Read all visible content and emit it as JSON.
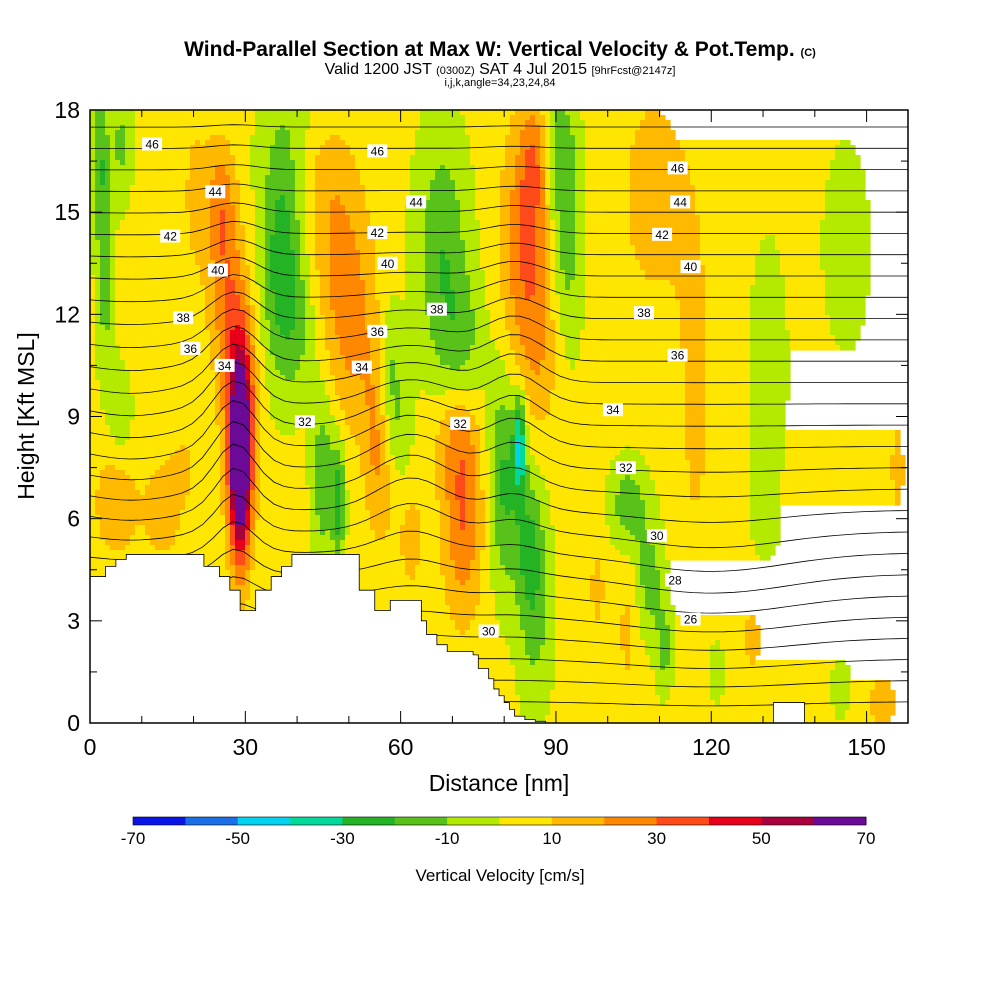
{
  "header": {
    "title": "Wind-Parallel Section at Max W: Vertical Velocity & Pot.Temp.",
    "copyright": "(C)",
    "valid_prefix": "Valid 1200 JST",
    "valid_utc": "(0300Z)",
    "valid_date": "SAT 4 Jul 2015",
    "forecast": "[9hrFcst@2147z]",
    "params": "i,j,k,angle=34,23,24,84"
  },
  "colors": {
    "levels": [
      "#0a14e6",
      "#1a6ee8",
      "#00d2f0",
      "#00d99a",
      "#24b324",
      "#58c21a",
      "#b4ea00",
      "#ffe600",
      "#ffba00",
      "#ff8800",
      "#ff4a1a",
      "#e8001a",
      "#a8003c",
      "#6a0a96"
    ],
    "terrain": "#ffffff",
    "contour": "#000000"
  },
  "chart_data": {
    "type": "heatmap",
    "xlabel": "Distance [nm]",
    "ylabel": "Height [Kft MSL]",
    "xlim": [
      0,
      158
    ],
    "ylim": [
      0,
      18
    ],
    "x_ticks": [
      0,
      30,
      60,
      90,
      120,
      150
    ],
    "y_ticks": [
      0,
      3,
      6,
      9,
      12,
      15,
      18
    ],
    "colorbar": {
      "label": "Vertical Velocity [cm/s]",
      "bounds": [
        -70,
        -60,
        -50,
        -40,
        -30,
        -20,
        -10,
        0,
        10,
        20,
        30,
        40,
        50,
        60,
        70
      ],
      "tick_labels": [
        "-70",
        "-50",
        "-30",
        "-10",
        "10",
        "30",
        "50",
        "70"
      ]
    },
    "terrain_profile": {
      "x": [
        0,
        3,
        3,
        5,
        5,
        7,
        7,
        22,
        22,
        25,
        25,
        27,
        27,
        29,
        29,
        32,
        32,
        35,
        35,
        37,
        37,
        39,
        39,
        52,
        52,
        55,
        55,
        58,
        58,
        64,
        64,
        65,
        65,
        67,
        67,
        69,
        69,
        74,
        74,
        75,
        75,
        77,
        77,
        78,
        78,
        79,
        79,
        80,
        80,
        81,
        81,
        82,
        82,
        84,
        84,
        86,
        86,
        88,
        88,
        132,
        132,
        138,
        138,
        158
      ],
      "y": [
        4.3,
        4.3,
        4.6,
        4.6,
        4.8,
        4.8,
        4.95,
        4.95,
        4.6,
        4.6,
        4.3,
        4.3,
        3.9,
        3.9,
        3.3,
        3.3,
        3.9,
        3.9,
        4.3,
        4.3,
        4.6,
        4.6,
        4.95,
        4.95,
        3.9,
        3.9,
        3.3,
        3.3,
        3.6,
        3.6,
        3.0,
        3.0,
        2.6,
        2.6,
        2.3,
        2.3,
        2.1,
        2.1,
        2.0,
        2.0,
        1.6,
        1.6,
        1.3,
        1.3,
        1.0,
        1.0,
        0.8,
        0.8,
        0.6,
        0.6,
        0.4,
        0.4,
        0.2,
        0.2,
        0.1,
        0.1,
        0.05,
        0.05,
        0.0,
        0.0,
        0.6,
        0.6,
        0.0,
        0.0
      ]
    },
    "vertical_velocity_features": [
      {
        "x": 29,
        "y": 7.6,
        "sx": 1.4,
        "sy": 2.0,
        "w": 75
      },
      {
        "x": 29,
        "y": 9.3,
        "sx": 2.2,
        "sy": 2.3,
        "w": 35
      },
      {
        "x": 26,
        "y": 13.0,
        "sx": 2.2,
        "sy": 2.0,
        "w": 22
      },
      {
        "x": 25,
        "y": 15.5,
        "sx": 2.0,
        "sy": 1.2,
        "w": 15
      },
      {
        "x": 5,
        "y": 6.5,
        "sx": 3.0,
        "sy": 1.2,
        "w": 15
      },
      {
        "x": 14,
        "y": 6.2,
        "sx": 2.5,
        "sy": 1.0,
        "w": 14
      },
      {
        "x": 18,
        "y": 7.5,
        "sx": 2.0,
        "sy": 0.9,
        "w": 8
      },
      {
        "x": 20,
        "y": 15.5,
        "sx": 2.2,
        "sy": 2.5,
        "w": 8
      },
      {
        "x": 48,
        "y": 13.5,
        "sx": 4.0,
        "sy": 2.5,
        "w": 20
      },
      {
        "x": 44,
        "y": 16.5,
        "sx": 4.0,
        "sy": 1.3,
        "w": 16
      },
      {
        "x": 52,
        "y": 11.0,
        "sx": 3.0,
        "sy": 2.0,
        "w": 12
      },
      {
        "x": 55,
        "y": 9.0,
        "sx": 1.5,
        "sy": 1.5,
        "w": 10
      },
      {
        "x": 56,
        "y": 7.0,
        "sx": 2.0,
        "sy": 1.5,
        "w": 12
      },
      {
        "x": 62,
        "y": 5.5,
        "sx": 2.0,
        "sy": 1.5,
        "w": 10
      },
      {
        "x": 72,
        "y": 6.3,
        "sx": 2.8,
        "sy": 2.2,
        "w": 28
      },
      {
        "x": 70,
        "y": 8.5,
        "sx": 3.0,
        "sy": 1.0,
        "w": 10
      },
      {
        "x": 84,
        "y": 14.0,
        "sx": 3.2,
        "sy": 2.5,
        "w": 26
      },
      {
        "x": 86,
        "y": 16.5,
        "sx": 2.0,
        "sy": 1.3,
        "w": 18
      },
      {
        "x": 87,
        "y": 11.0,
        "sx": 3.0,
        "sy": 1.8,
        "w": 12
      },
      {
        "x": 109,
        "y": 15.5,
        "sx": 6.0,
        "sy": 3.0,
        "w": 10
      },
      {
        "x": 117,
        "y": 9.3,
        "sx": 2.5,
        "sy": 4.0,
        "w": 9
      },
      {
        "x": 98,
        "y": 4.0,
        "sx": 1.5,
        "sy": 1.3,
        "w": 9
      },
      {
        "x": 104,
        "y": 2.8,
        "sx": 1.6,
        "sy": 1.5,
        "w": 10
      },
      {
        "x": 128,
        "y": 2.5,
        "sx": 2.5,
        "sy": 1.5,
        "w": 8
      },
      {
        "x": 145,
        "y": 6.5,
        "sx": 3.5,
        "sy": 0.7,
        "w": 7
      },
      {
        "x": 153,
        "y": 0.6,
        "sx": 2.0,
        "sy": 0.6,
        "w": 14
      },
      {
        "x": 156,
        "y": 7.5,
        "sx": 2.0,
        "sy": 2.0,
        "w": 8
      },
      {
        "x": 37,
        "y": 13.5,
        "sx": 2.8,
        "sy": 2.3,
        "w": -28
      },
      {
        "x": 42,
        "y": 17.0,
        "sx": 5.5,
        "sy": 1.6,
        "w": -15
      },
      {
        "x": 41,
        "y": 11.5,
        "sx": 3.0,
        "sy": 1.5,
        "w": -12
      },
      {
        "x": 45,
        "y": 7.3,
        "sx": 1.5,
        "sy": 1.7,
        "w": -22
      },
      {
        "x": 48,
        "y": 6.5,
        "sx": 0.9,
        "sy": 1.2,
        "w": -30
      },
      {
        "x": 2,
        "y": 16.5,
        "sx": 1.1,
        "sy": 1.8,
        "w": -22
      },
      {
        "x": 3,
        "y": 12.5,
        "sx": 1.2,
        "sy": 2.0,
        "w": -15
      },
      {
        "x": 6,
        "y": 9.0,
        "sx": 1.5,
        "sy": 1.0,
        "w": -12
      },
      {
        "x": 6,
        "y": 17.0,
        "sx": 1.5,
        "sy": 1.2,
        "w": -15
      },
      {
        "x": 58,
        "y": 10.5,
        "sx": 1.6,
        "sy": 1.3,
        "w": -14
      },
      {
        "x": 60,
        "y": 8.5,
        "sx": 1.8,
        "sy": 1.2,
        "w": -12
      },
      {
        "x": 68,
        "y": 13.8,
        "sx": 3.5,
        "sy": 2.5,
        "w": -22
      },
      {
        "x": 72,
        "y": 11.0,
        "sx": 3.0,
        "sy": 1.5,
        "w": -15
      },
      {
        "x": 80,
        "y": 7.2,
        "sx": 2.2,
        "sy": 2.2,
        "w": -25
      },
      {
        "x": 83,
        "y": 8.2,
        "sx": 0.8,
        "sy": 1.0,
        "w": -40
      },
      {
        "x": 85,
        "y": 5.2,
        "sx": 2.0,
        "sy": 1.5,
        "w": -22
      },
      {
        "x": 86,
        "y": 2.8,
        "sx": 2.3,
        "sy": 1.8,
        "w": -14
      },
      {
        "x": 92,
        "y": 14.5,
        "sx": 2.2,
        "sy": 2.5,
        "w": -20
      },
      {
        "x": 90,
        "y": 17.0,
        "sx": 2.0,
        "sy": 1.2,
        "w": -14
      },
      {
        "x": 104,
        "y": 6.4,
        "sx": 2.5,
        "sy": 0.9,
        "w": -20
      },
      {
        "x": 108,
        "y": 4.2,
        "sx": 2.0,
        "sy": 1.2,
        "w": -18
      },
      {
        "x": 111,
        "y": 2.2,
        "sx": 1.2,
        "sy": 0.9,
        "w": -16
      },
      {
        "x": 131,
        "y": 10.5,
        "sx": 2.5,
        "sy": 2.5,
        "w": -10
      },
      {
        "x": 146,
        "y": 14.0,
        "sx": 3.0,
        "sy": 2.0,
        "w": -10
      },
      {
        "x": 130,
        "y": 6.0,
        "sx": 2.0,
        "sy": 1.0,
        "w": -8
      },
      {
        "x": 121,
        "y": 1.5,
        "sx": 1.5,
        "sy": 0.8,
        "w": -7
      },
      {
        "x": 145,
        "y": 1.0,
        "sx": 1.5,
        "sy": 0.7,
        "w": -7
      }
    ],
    "theta_labels": [
      {
        "text": "46",
        "x": 12.0,
        "y": 17.0
      },
      {
        "text": "44",
        "x": 24.2,
        "y": 15.6
      },
      {
        "text": "42",
        "x": 15.5,
        "y": 14.3
      },
      {
        "text": "40",
        "x": 24.7,
        "y": 13.3
      },
      {
        "text": "38",
        "x": 18.0,
        "y": 11.9
      },
      {
        "text": "36",
        "x": 19.4,
        "y": 11.0
      },
      {
        "text": "34",
        "x": 26.0,
        "y": 10.5
      },
      {
        "text": "32",
        "x": 41.5,
        "y": 8.85
      },
      {
        "text": "46",
        "x": 55.5,
        "y": 16.8
      },
      {
        "text": "44",
        "x": 63.0,
        "y": 15.3
      },
      {
        "text": "42",
        "x": 55.5,
        "y": 14.4
      },
      {
        "text": "40",
        "x": 57.5,
        "y": 13.5
      },
      {
        "text": "38",
        "x": 67.0,
        "y": 12.15
      },
      {
        "text": "36",
        "x": 55.5,
        "y": 11.5
      },
      {
        "text": "34",
        "x": 52.5,
        "y": 10.45
      },
      {
        "text": "32",
        "x": 71.5,
        "y": 8.8
      },
      {
        "text": "46",
        "x": 113.5,
        "y": 16.3
      },
      {
        "text": "44",
        "x": 114.0,
        "y": 15.3
      },
      {
        "text": "42",
        "x": 110.5,
        "y": 14.35
      },
      {
        "text": "40",
        "x": 116.0,
        "y": 13.4
      },
      {
        "text": "38",
        "x": 107.0,
        "y": 12.05
      },
      {
        "text": "36",
        "x": 113.5,
        "y": 10.8
      },
      {
        "text": "34",
        "x": 101.0,
        "y": 9.2
      },
      {
        "text": "32",
        "x": 103.5,
        "y": 7.5
      },
      {
        "text": "30",
        "x": 109.5,
        "y": 5.5
      },
      {
        "text": "28",
        "x": 113.0,
        "y": 4.2
      },
      {
        "text": "26",
        "x": 116.0,
        "y": 3.05
      },
      {
        "text": "30",
        "x": 77.0,
        "y": 2.7
      }
    ]
  }
}
